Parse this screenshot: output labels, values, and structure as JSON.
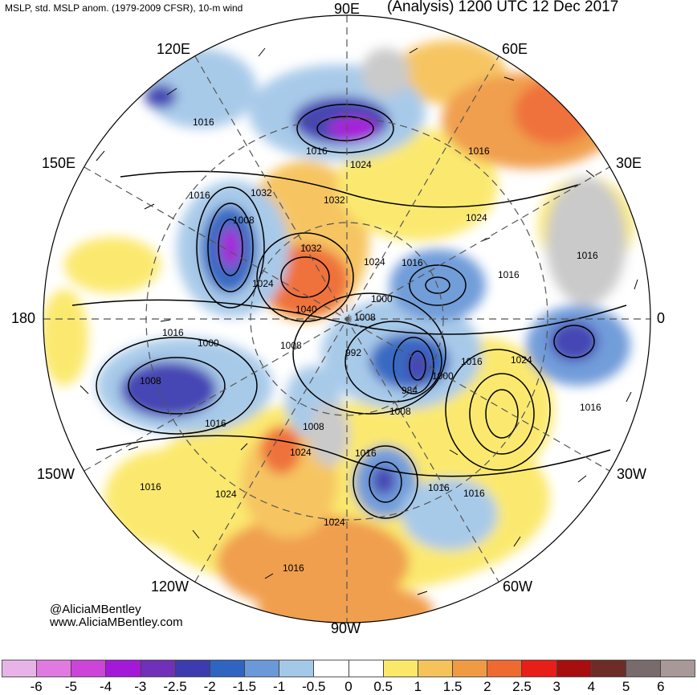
{
  "header": {
    "left_title": "MSLP, std. MSLP anom. (1979-2009 CFSR), 10-m wind",
    "right_title": "(Analysis) 1200 UTC 12 Dec 2017"
  },
  "longitude_labels": {
    "lon_90e": "90E",
    "lon_60e": "60E",
    "lon_120e": "120E",
    "lon_30e": "30E",
    "lon_150e": "150E",
    "lon_180": "180",
    "lon_0": "0",
    "lon_150w": "150W",
    "lon_30w": "30W",
    "lon_120w": "120W",
    "lon_60w": "60W",
    "lon_90w": "90W"
  },
  "isobar_labels": {
    "a": "1016",
    "b": "1016",
    "c": "1024",
    "d": "1016",
    "e": "1016",
    "f": "1032",
    "g": "1032",
    "h": "1024",
    "i": "1008",
    "j": "1032",
    "k": "1024",
    "l": "1016",
    "m": "1016",
    "n": "1024",
    "o": "1040",
    "p": "1000",
    "q": "1008",
    "r": "1016",
    "s": "1000",
    "t": "1008",
    "u": "992",
    "v": "1016",
    "w": "1024",
    "x": "1008",
    "y": "984",
    "z": "1000",
    "aa": "1008",
    "ab": "1016",
    "ac": "1016",
    "ad": "1008",
    "ae": "1024",
    "af": "1016",
    "ag": "1016",
    "ah": "1024",
    "ai": "1016",
    "aj": "1016",
    "ak": "1024",
    "al": "1016"
  },
  "credits": {
    "author": "@AliciaMBentley",
    "website": "www.AliciaMBentley.com"
  },
  "colorbar": {
    "colors": [
      "#e8b4e8",
      "#e07ae0",
      "#cc44d8",
      "#a418d8",
      "#7030b8",
      "#3c3cb0",
      "#2f64c0",
      "#6a98d8",
      "#a4c8e8",
      "#ffffff",
      "#ffffff",
      "#fbe868",
      "#f6c25a",
      "#f09a44",
      "#ef6a30",
      "#e81e18",
      "#a80e0e",
      "#6e2c26",
      "#786b6b",
      "#a89898"
    ],
    "ticks": [
      "-6",
      "-5",
      "-4",
      "-3",
      "-2.5",
      "-2",
      "-1.5",
      "-1",
      "-0.5",
      "0",
      "0.5",
      "1",
      "1.5",
      "2",
      "2.5",
      "3",
      "4",
      "5",
      "6"
    ]
  }
}
